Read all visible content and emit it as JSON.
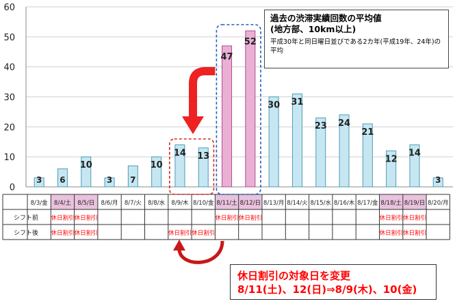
{
  "chart_data": {
    "type": "bar",
    "yticks": [
      0,
      10,
      20,
      30,
      40,
      50,
      60
    ],
    "ylim": [
      0,
      60
    ],
    "categories": [
      "8/3/金",
      "8/4/土",
      "8/5/日",
      "8/6/月",
      "8/7/火",
      "8/8/水",
      "8/9/木",
      "8/10/金",
      "8/11/土",
      "8/12/日",
      "8/13/月",
      "8/14/火",
      "8/15/水",
      "8/16/木",
      "8/17/金",
      "8/18/土",
      "8/19/日",
      "8/20/月"
    ],
    "values": [
      3,
      6,
      10,
      3,
      7,
      10,
      14,
      13,
      47,
      52,
      30,
      31,
      23,
      24,
      21,
      12,
      14,
      3
    ],
    "highlighted_bars": [
      8,
      9
    ],
    "holiday_columns": [
      1,
      2,
      8,
      9,
      15,
      16
    ],
    "grid": true,
    "legend_title": "過去の渋滞実績回数の平均値\n(地方部、10km以上)",
    "legend_note": "平成30年と同日曜日並びである2カ年(平成19年、24年)の平均",
    "table": {
      "rows": [
        {
          "label": "シフト前",
          "marked": [
            1,
            2,
            8,
            9,
            15,
            16
          ]
        },
        {
          "label": "シフト後",
          "marked": [
            1,
            2,
            6,
            7,
            15,
            16
          ]
        }
      ],
      "cell_text": "休日割引"
    },
    "callout": {
      "line1": "休日割引の対象日を変更",
      "line2": "8/11(土)、12(日)⇒8/9(木)、10(金)"
    },
    "colors": {
      "bar_normal": "#c6e7f1",
      "bar_normal_border": "#4a9cb8",
      "bar_highlight": "#eab0d4",
      "bar_highlight_border": "#b04a90",
      "holiday_bg": "#e9c2dd",
      "red_text": "#ff0000",
      "arrow": "#ee2222",
      "dashed_blue": "#1f5fbf",
      "dashed_red": "#dd2222"
    }
  }
}
